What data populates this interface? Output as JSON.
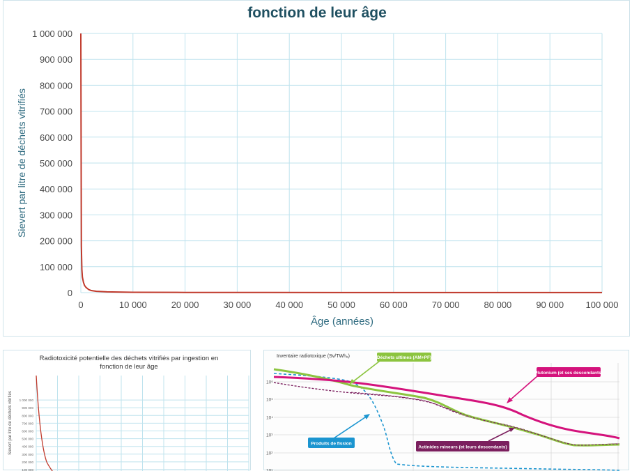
{
  "main_chart": {
    "title_line_partial": "fonction de leur âge",
    "ylabel": "Sievert par litre de déchets vitrifiés",
    "xlabel": "Âge (années)",
    "y_ticks": [
      "0",
      "100 000",
      "200 000",
      "300 000",
      "400 000",
      "500 000",
      "600 000",
      "700 000",
      "800 000",
      "900 000",
      "1 000 000"
    ],
    "x_ticks": [
      "0",
      "10 000",
      "20 000",
      "30 000",
      "40 000",
      "50 000",
      "60 000",
      "70 000",
      "80 000",
      "90 000",
      "100 000"
    ]
  },
  "small_chart": {
    "title_line1": "Radiotoxicité potentielle des déchets vitrifiés par ingestion en",
    "title_line2": "fonction de leur âge",
    "ylabel": "Sievert par litre de déchets vitrifiés",
    "y_ticks": [
      "100 000",
      "200 000",
      "300 000",
      "400 000",
      "500 000",
      "600 000",
      "700 000",
      "800 000",
      "900 000",
      "1 000 000"
    ]
  },
  "right_chart": {
    "ylabel": "Inventaire radiotoxique (Sv/TWhₑ)",
    "y_ticks": [
      "10⁶",
      "10⁵",
      "10⁴",
      "10³",
      "10²",
      "10¹",
      "10°"
    ],
    "labels": {
      "dechets": "Déchets ultimes (AM+PF)",
      "plutonium": "Plutonium (et ses descendants)",
      "produits": "Produits de fission",
      "actinides": "Actinides mineurs (et leurs descendants)"
    }
  },
  "colors": {
    "curve": "#c0392b",
    "grid": "#bfe3ee",
    "plutonium": "#d4137c",
    "dechets": "#8cc43f",
    "produits": "#1b95d0",
    "actinides": "#7b1f5e"
  },
  "chart_data": [
    {
      "type": "line",
      "title": "fonction de leur âge",
      "xlabel": "Âge (années)",
      "ylabel": "Sievert par litre de déchets vitrifiés",
      "xlim": [
        0,
        100000
      ],
      "ylim": [
        0,
        1000000
      ],
      "grid": true,
      "x": [
        0,
        100,
        200,
        300,
        500,
        700,
        1000,
        1500,
        2000,
        3000,
        5000,
        10000,
        20000,
        50000,
        100000
      ],
      "series": [
        {
          "values": [
            1000000,
            180000,
            90000,
            60000,
            40000,
            28000,
            20000,
            12000,
            8000,
            5000,
            3000,
            1500,
            800,
            400,
            200
          ]
        }
      ]
    },
    {
      "type": "line",
      "title": "Radiotoxicité potentielle des déchets vitrifiés par ingestion en fonction de leur âge",
      "ylabel": "Sievert par litre de déchets vitrifiés",
      "ylim": [
        0,
        1000000
      ],
      "grid": true,
      "series": [
        {
          "values": [
            1000000,
            700000,
            400000,
            250000,
            150000,
            100000
          ]
        }
      ]
    },
    {
      "type": "line",
      "ylabel": "Inventaire radiotoxique (Sv/TWhₑ)",
      "scale": "log",
      "series": [
        {
          "name": "Plutonium (et ses descendants)"
        },
        {
          "name": "Déchets ultimes (AM+PF)"
        },
        {
          "name": "Produits de fission"
        },
        {
          "name": "Actinides mineurs (et leurs descendants)"
        }
      ]
    }
  ]
}
